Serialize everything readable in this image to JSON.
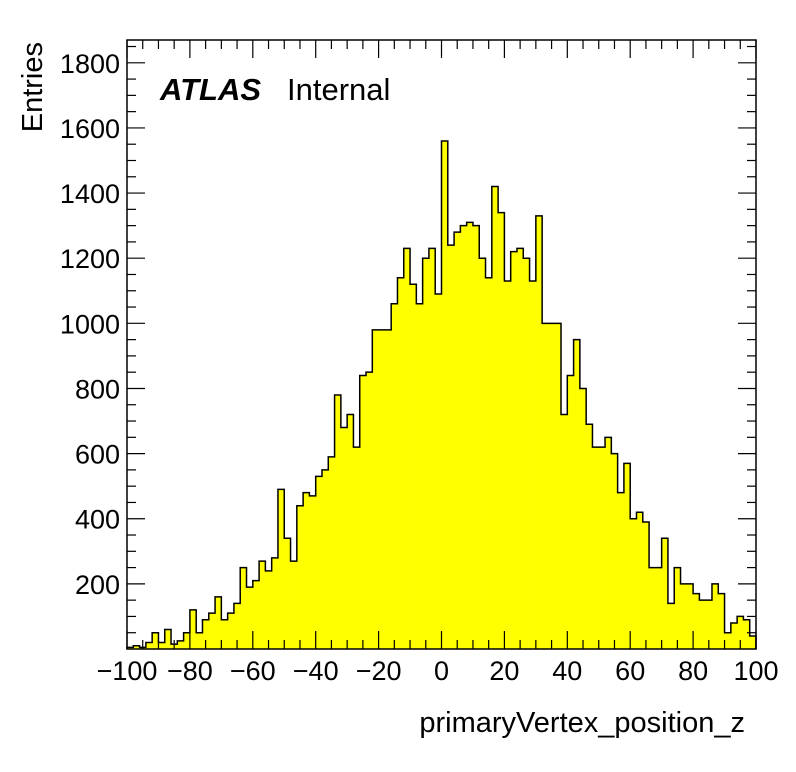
{
  "chart_data": {
    "type": "bar",
    "style": "histogram",
    "fill_color": "#ffff00",
    "line_color": "#000000",
    "xlabel": "primaryVertex_position_z",
    "ylabel": "Entries",
    "xlim": [
      -100,
      100
    ],
    "ylim": [
      0,
      1870
    ],
    "x_ticks": [
      -100,
      -80,
      -60,
      -40,
      -20,
      0,
      20,
      40,
      60,
      80,
      100
    ],
    "x_tick_labels": [
      "−100",
      "−80",
      "−60",
      "−40",
      "−20",
      "0",
      "20",
      "40",
      "60",
      "80",
      "100"
    ],
    "y_ticks": [
      200,
      400,
      600,
      800,
      1000,
      1200,
      1400,
      1600,
      1800
    ],
    "y_tick_labels": [
      "200",
      "400",
      "600",
      "800",
      "1000",
      "1200",
      "1400",
      "1600",
      "1800"
    ],
    "grid": false,
    "bin_width": 2,
    "x": [
      -99,
      -97,
      -95,
      -93,
      -91,
      -89,
      -87,
      -85,
      -83,
      -81,
      -79,
      -77,
      -75,
      -73,
      -71,
      -69,
      -67,
      -65,
      -63,
      -61,
      -59,
      -57,
      -55,
      -53,
      -51,
      -49,
      -47,
      -45,
      -43,
      -41,
      -39,
      -37,
      -35,
      -33,
      -31,
      -29,
      -27,
      -25,
      -23,
      -21,
      -19,
      -17,
      -15,
      -13,
      -11,
      -9,
      -7,
      -5,
      -3,
      -1,
      1,
      3,
      5,
      7,
      9,
      11,
      13,
      15,
      17,
      19,
      21,
      23,
      25,
      27,
      29,
      31,
      33,
      35,
      37,
      39,
      41,
      43,
      45,
      47,
      49,
      51,
      53,
      55,
      57,
      59,
      61,
      63,
      65,
      67,
      69,
      71,
      73,
      75,
      77,
      79,
      81,
      83,
      85,
      87,
      89,
      91,
      93,
      95,
      97,
      99
    ],
    "values": [
      5,
      10,
      5,
      20,
      50,
      20,
      60,
      15,
      25,
      50,
      120,
      50,
      90,
      110,
      160,
      90,
      110,
      140,
      250,
      190,
      210,
      270,
      240,
      280,
      490,
      340,
      270,
      440,
      480,
      470,
      530,
      550,
      590,
      780,
      680,
      720,
      620,
      840,
      850,
      980,
      980,
      980,
      1060,
      1140,
      1230,
      1120,
      1060,
      1200,
      1230,
      1090,
      1560,
      1240,
      1280,
      1300,
      1310,
      1300,
      1200,
      1140,
      1420,
      1340,
      1130,
      1220,
      1230,
      1200,
      1130,
      1330,
      1000,
      1000,
      1000,
      720,
      840,
      950,
      800,
      690,
      620,
      620,
      650,
      600,
      480,
      570,
      400,
      420,
      390,
      250,
      250,
      340,
      140,
      250,
      200,
      200,
      170,
      150,
      150,
      200,
      170,
      50,
      80,
      100,
      90,
      40
    ]
  },
  "annotations": {
    "experiment": "ATLAS",
    "status": "Internal"
  }
}
